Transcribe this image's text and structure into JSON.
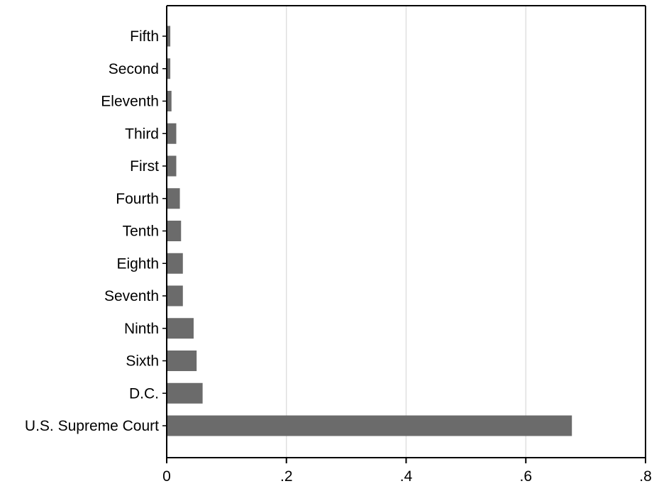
{
  "chart_data": {
    "type": "bar",
    "orientation": "horizontal",
    "title": "",
    "xlabel": "",
    "ylabel": "",
    "categories": [
      "Fifth",
      "Second",
      "Eleventh",
      "Third",
      "First",
      "Fourth",
      "Tenth",
      "Eighth",
      "Seventh",
      "Ninth",
      "Sixth",
      "D.C.",
      "U.S. Supreme Court"
    ],
    "values": [
      0.006,
      0.006,
      0.008,
      0.016,
      0.016,
      0.022,
      0.024,
      0.027,
      0.027,
      0.045,
      0.05,
      0.06,
      0.677
    ],
    "xlim": [
      0,
      0.8
    ],
    "xticks": [
      0,
      0.2,
      0.4,
      0.6,
      0.8
    ],
    "xtick_labels": [
      "0",
      ".2",
      ".4",
      ".6",
      ".8"
    ],
    "grid": true,
    "legend": "none",
    "colors": {
      "bar": "#6b6b6b",
      "grid": "#e0e0e0",
      "axis": "#000000",
      "background": "#ffffff"
    }
  }
}
